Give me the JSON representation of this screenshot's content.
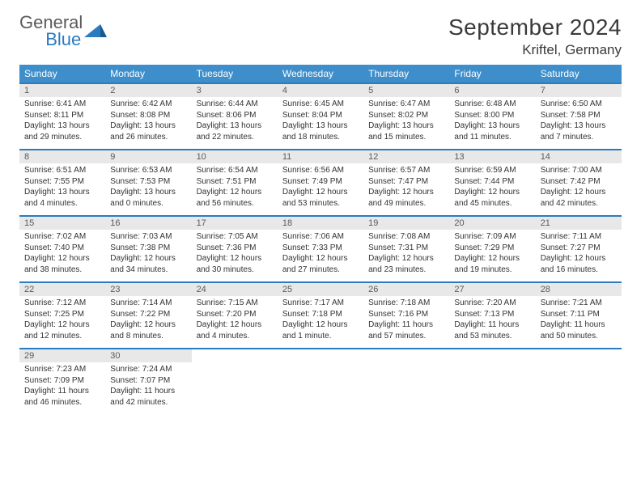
{
  "brand": {
    "word1": "General",
    "word2": "Blue",
    "accent_color": "#2c7bbf"
  },
  "header": {
    "title": "September 2024",
    "location": "Kriftel, Germany"
  },
  "colors": {
    "header_bg": "#3d8ecb",
    "header_text": "#ffffff",
    "row_divider": "#2c7bbf",
    "daynum_bg": "#e8e8e8",
    "body_text": "#333333",
    "page_bg": "#ffffff"
  },
  "typography": {
    "title_fontsize": 28,
    "location_fontsize": 17,
    "dayname_fontsize": 12,
    "daynum_fontsize": 11,
    "body_fontsize": 10
  },
  "calendar": {
    "day_names": [
      "Sunday",
      "Monday",
      "Tuesday",
      "Wednesday",
      "Thursday",
      "Friday",
      "Saturday"
    ],
    "weeks": [
      [
        {
          "n": "1",
          "sr": "Sunrise: 6:41 AM",
          "ss": "Sunset: 8:11 PM",
          "d1": "Daylight: 13 hours",
          "d2": "and 29 minutes."
        },
        {
          "n": "2",
          "sr": "Sunrise: 6:42 AM",
          "ss": "Sunset: 8:08 PM",
          "d1": "Daylight: 13 hours",
          "d2": "and 26 minutes."
        },
        {
          "n": "3",
          "sr": "Sunrise: 6:44 AM",
          "ss": "Sunset: 8:06 PM",
          "d1": "Daylight: 13 hours",
          "d2": "and 22 minutes."
        },
        {
          "n": "4",
          "sr": "Sunrise: 6:45 AM",
          "ss": "Sunset: 8:04 PM",
          "d1": "Daylight: 13 hours",
          "d2": "and 18 minutes."
        },
        {
          "n": "5",
          "sr": "Sunrise: 6:47 AM",
          "ss": "Sunset: 8:02 PM",
          "d1": "Daylight: 13 hours",
          "d2": "and 15 minutes."
        },
        {
          "n": "6",
          "sr": "Sunrise: 6:48 AM",
          "ss": "Sunset: 8:00 PM",
          "d1": "Daylight: 13 hours",
          "d2": "and 11 minutes."
        },
        {
          "n": "7",
          "sr": "Sunrise: 6:50 AM",
          "ss": "Sunset: 7:58 PM",
          "d1": "Daylight: 13 hours",
          "d2": "and 7 minutes."
        }
      ],
      [
        {
          "n": "8",
          "sr": "Sunrise: 6:51 AM",
          "ss": "Sunset: 7:55 PM",
          "d1": "Daylight: 13 hours",
          "d2": "and 4 minutes."
        },
        {
          "n": "9",
          "sr": "Sunrise: 6:53 AM",
          "ss": "Sunset: 7:53 PM",
          "d1": "Daylight: 13 hours",
          "d2": "and 0 minutes."
        },
        {
          "n": "10",
          "sr": "Sunrise: 6:54 AM",
          "ss": "Sunset: 7:51 PM",
          "d1": "Daylight: 12 hours",
          "d2": "and 56 minutes."
        },
        {
          "n": "11",
          "sr": "Sunrise: 6:56 AM",
          "ss": "Sunset: 7:49 PM",
          "d1": "Daylight: 12 hours",
          "d2": "and 53 minutes."
        },
        {
          "n": "12",
          "sr": "Sunrise: 6:57 AM",
          "ss": "Sunset: 7:47 PM",
          "d1": "Daylight: 12 hours",
          "d2": "and 49 minutes."
        },
        {
          "n": "13",
          "sr": "Sunrise: 6:59 AM",
          "ss": "Sunset: 7:44 PM",
          "d1": "Daylight: 12 hours",
          "d2": "and 45 minutes."
        },
        {
          "n": "14",
          "sr": "Sunrise: 7:00 AM",
          "ss": "Sunset: 7:42 PM",
          "d1": "Daylight: 12 hours",
          "d2": "and 42 minutes."
        }
      ],
      [
        {
          "n": "15",
          "sr": "Sunrise: 7:02 AM",
          "ss": "Sunset: 7:40 PM",
          "d1": "Daylight: 12 hours",
          "d2": "and 38 minutes."
        },
        {
          "n": "16",
          "sr": "Sunrise: 7:03 AM",
          "ss": "Sunset: 7:38 PM",
          "d1": "Daylight: 12 hours",
          "d2": "and 34 minutes."
        },
        {
          "n": "17",
          "sr": "Sunrise: 7:05 AM",
          "ss": "Sunset: 7:36 PM",
          "d1": "Daylight: 12 hours",
          "d2": "and 30 minutes."
        },
        {
          "n": "18",
          "sr": "Sunrise: 7:06 AM",
          "ss": "Sunset: 7:33 PM",
          "d1": "Daylight: 12 hours",
          "d2": "and 27 minutes."
        },
        {
          "n": "19",
          "sr": "Sunrise: 7:08 AM",
          "ss": "Sunset: 7:31 PM",
          "d1": "Daylight: 12 hours",
          "d2": "and 23 minutes."
        },
        {
          "n": "20",
          "sr": "Sunrise: 7:09 AM",
          "ss": "Sunset: 7:29 PM",
          "d1": "Daylight: 12 hours",
          "d2": "and 19 minutes."
        },
        {
          "n": "21",
          "sr": "Sunrise: 7:11 AM",
          "ss": "Sunset: 7:27 PM",
          "d1": "Daylight: 12 hours",
          "d2": "and 16 minutes."
        }
      ],
      [
        {
          "n": "22",
          "sr": "Sunrise: 7:12 AM",
          "ss": "Sunset: 7:25 PM",
          "d1": "Daylight: 12 hours",
          "d2": "and 12 minutes."
        },
        {
          "n": "23",
          "sr": "Sunrise: 7:14 AM",
          "ss": "Sunset: 7:22 PM",
          "d1": "Daylight: 12 hours",
          "d2": "and 8 minutes."
        },
        {
          "n": "24",
          "sr": "Sunrise: 7:15 AM",
          "ss": "Sunset: 7:20 PM",
          "d1": "Daylight: 12 hours",
          "d2": "and 4 minutes."
        },
        {
          "n": "25",
          "sr": "Sunrise: 7:17 AM",
          "ss": "Sunset: 7:18 PM",
          "d1": "Daylight: 12 hours",
          "d2": "and 1 minute."
        },
        {
          "n": "26",
          "sr": "Sunrise: 7:18 AM",
          "ss": "Sunset: 7:16 PM",
          "d1": "Daylight: 11 hours",
          "d2": "and 57 minutes."
        },
        {
          "n": "27",
          "sr": "Sunrise: 7:20 AM",
          "ss": "Sunset: 7:13 PM",
          "d1": "Daylight: 11 hours",
          "d2": "and 53 minutes."
        },
        {
          "n": "28",
          "sr": "Sunrise: 7:21 AM",
          "ss": "Sunset: 7:11 PM",
          "d1": "Daylight: 11 hours",
          "d2": "and 50 minutes."
        }
      ],
      [
        {
          "n": "29",
          "sr": "Sunrise: 7:23 AM",
          "ss": "Sunset: 7:09 PM",
          "d1": "Daylight: 11 hours",
          "d2": "and 46 minutes."
        },
        {
          "n": "30",
          "sr": "Sunrise: 7:24 AM",
          "ss": "Sunset: 7:07 PM",
          "d1": "Daylight: 11 hours",
          "d2": "and 42 minutes."
        },
        null,
        null,
        null,
        null,
        null
      ]
    ]
  }
}
